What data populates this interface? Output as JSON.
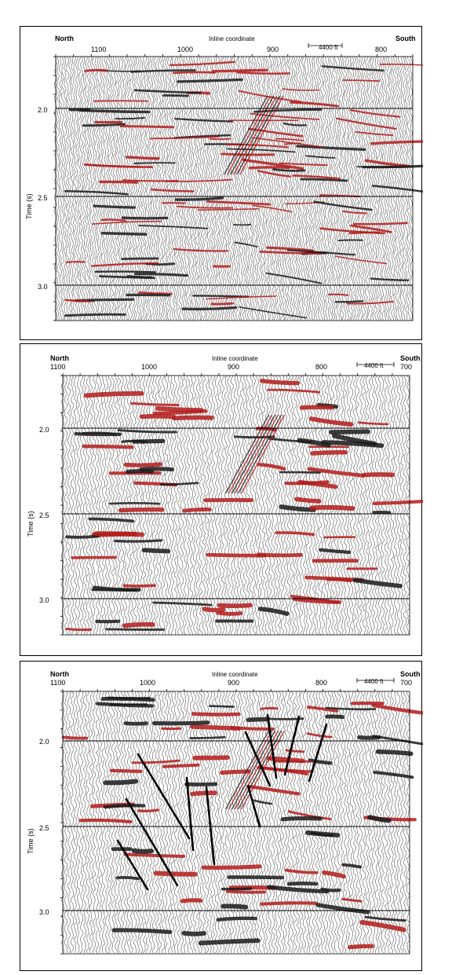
{
  "figure": {
    "panels": [
      {
        "id": "a",
        "north_label": "North",
        "south_label": "South",
        "axis_title": "Inline coordinate",
        "scale_bar_label": "4400 ft",
        "ylabel": "Time (s)",
        "x_ticks": [
          "1100",
          "1000",
          "900",
          "800"
        ],
        "y_ticks": [
          "2.0",
          "2.5",
          "3.0"
        ],
        "style": "dense",
        "interpretation_lines": false
      },
      {
        "id": "b",
        "north_label": "North",
        "south_label": "South",
        "axis_title": "Inline coordinate",
        "scale_bar_label": "4400 ft",
        "ylabel": "Time (s)",
        "x_ticks": [
          "1100",
          "1000",
          "900",
          "800",
          "700"
        ],
        "y_ticks": [
          "2.0",
          "2.5",
          "3.0"
        ],
        "style": "smooth",
        "interpretation_lines": false
      },
      {
        "id": "c",
        "north_label": "North",
        "south_label": "South",
        "axis_title": "Inline coordinate",
        "scale_bar_label": "4400 ft",
        "ylabel": "Time (s)",
        "x_ticks": [
          "1100",
          "1000",
          "900",
          "800",
          "700"
        ],
        "y_ticks": [
          "2.0",
          "2.5",
          "3.0"
        ],
        "style": "smooth",
        "interpretation_lines": true
      }
    ],
    "colors": {
      "trace": "#111111",
      "positive": "#b31b1b",
      "frame": "#000000"
    }
  }
}
